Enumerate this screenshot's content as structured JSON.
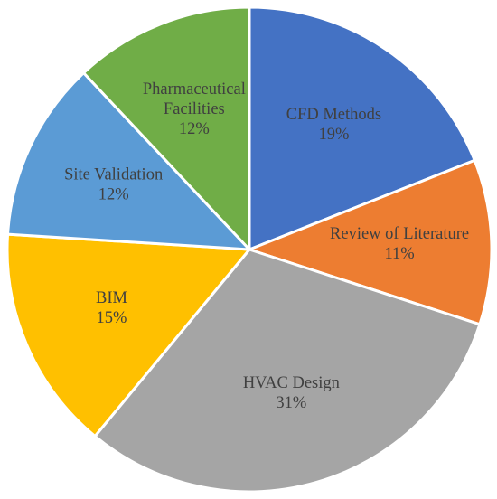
{
  "chart_data": {
    "type": "pie",
    "start_angle_deg": 0,
    "direction": "clockwise",
    "legend": "none",
    "slices": [
      {
        "label_lines": [
          "CFD Methods"
        ],
        "value_label": "19%",
        "value": 19,
        "color": "#4472C4"
      },
      {
        "label_lines": [
          "Review of Literature"
        ],
        "value_label": "11%",
        "value": 11,
        "color": "#ED7D31"
      },
      {
        "label_lines": [
          "HVAC Design"
        ],
        "value_label": "31%",
        "value": 31,
        "color": "#A5A5A5"
      },
      {
        "label_lines": [
          "BIM"
        ],
        "value_label": "15%",
        "value": 15,
        "color": "#FFC000"
      },
      {
        "label_lines": [
          "Site Validation"
        ],
        "value_label": "12%",
        "value": 12,
        "color": "#5B9BD5"
      },
      {
        "label_lines": [
          "Pharmaceutical",
          "Facilities"
        ],
        "value_label": "12%",
        "value": 12,
        "color": "#70AD47"
      }
    ]
  }
}
